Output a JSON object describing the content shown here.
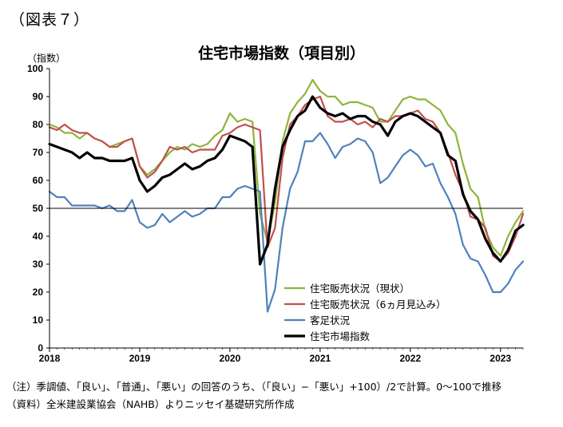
{
  "figure_label": "（図表７）",
  "chart_data": {
    "type": "line",
    "title": "住宅市場指数（項目別）",
    "ylabel": "（指数）",
    "xlabel": "",
    "ylim": [
      0,
      100
    ],
    "yticks": [
      "0",
      "10",
      "20",
      "30",
      "40",
      "50",
      "60",
      "70",
      "80",
      "90",
      "100"
    ],
    "xticks": [
      {
        "label": "2018",
        "x": 0
      },
      {
        "label": "2019",
        "x": 12
      },
      {
        "label": "2020",
        "x": 24
      },
      {
        "label": "2021",
        "x": 36
      },
      {
        "label": "2022",
        "x": 48
      },
      {
        "label": "2023",
        "x": 60
      }
    ],
    "x_range": [
      0,
      63
    ],
    "reference_line": 50,
    "legend_position": "bottom-center",
    "series": [
      {
        "name": "住宅販売状況（現状）",
        "color": "#8db53c",
        "width": 2.2,
        "values": [
          80,
          79,
          77,
          77,
          75,
          77,
          75,
          74,
          72,
          73,
          74,
          75,
          65,
          62,
          64,
          67,
          70,
          72,
          71,
          73,
          72,
          73,
          76,
          78,
          84,
          81,
          82,
          81,
          48,
          38,
          52,
          74,
          84,
          88,
          91,
          96,
          92,
          90,
          90,
          87,
          88,
          88,
          87,
          86,
          81,
          81,
          85,
          89,
          90,
          89,
          89,
          87,
          85,
          80,
          77,
          66,
          57,
          54,
          42,
          36,
          33,
          40,
          45,
          49
        ]
      },
      {
        "name": "住宅販売状況（6ヵ月見込み）",
        "color": "#c0504d",
        "width": 2.2,
        "values": [
          79,
          78,
          80,
          78,
          77,
          77,
          75,
          74,
          72,
          72,
          74,
          75,
          65,
          61,
          63,
          67,
          72,
          71,
          72,
          70,
          71,
          71,
          71,
          76,
          77,
          79,
          80,
          79,
          78,
          36,
          43,
          68,
          80,
          83,
          87,
          89,
          90,
          83,
          81,
          81,
          82,
          80,
          81,
          79,
          82,
          81,
          83,
          83,
          84,
          85,
          82,
          81,
          77,
          70,
          62,
          56,
          47,
          46,
          43,
          33,
          31,
          34,
          40,
          48
        ]
      },
      {
        "name": "客足状況",
        "color": "#4f81bd",
        "width": 2.2,
        "values": [
          56,
          54,
          54,
          51,
          51,
          51,
          51,
          50,
          51,
          49,
          49,
          53,
          45,
          43,
          44,
          48,
          45,
          47,
          49,
          47,
          48,
          50,
          50,
          54,
          54,
          57,
          58,
          57,
          56,
          13,
          21,
          43,
          57,
          63,
          74,
          74,
          77,
          73,
          68,
          72,
          73,
          75,
          74,
          70,
          59,
          61,
          65,
          69,
          71,
          69,
          65,
          66,
          59,
          54,
          48,
          37,
          32,
          31,
          26,
          20,
          20,
          23,
          28,
          31
        ]
      },
      {
        "name": "住宅市場指数",
        "color": "#000000",
        "width": 3.2,
        "values": [
          73,
          72,
          71,
          70,
          68,
          70,
          68,
          68,
          67,
          67,
          67,
          68,
          60,
          56,
          58,
          61,
          62,
          64,
          66,
          64,
          65,
          67,
          68,
          71,
          76,
          75,
          74,
          72,
          30,
          37,
          57,
          72,
          78,
          83,
          85,
          90,
          86,
          84,
          83,
          84,
          82,
          83,
          83,
          81,
          80,
          76,
          81,
          83,
          84,
          83,
          81,
          79,
          77,
          69,
          67,
          55,
          49,
          46,
          39,
          34,
          31,
          35,
          42,
          44
        ]
      }
    ]
  },
  "notes": [
    "（注）季調値、「良い」、「普通」、「悪い」の回答のうち、（「良い」−「悪い」+100）/2で計算。0～100で推移",
    "（資料）全米建設業協会（NAHB）よりニッセイ基礎研究所作成"
  ]
}
